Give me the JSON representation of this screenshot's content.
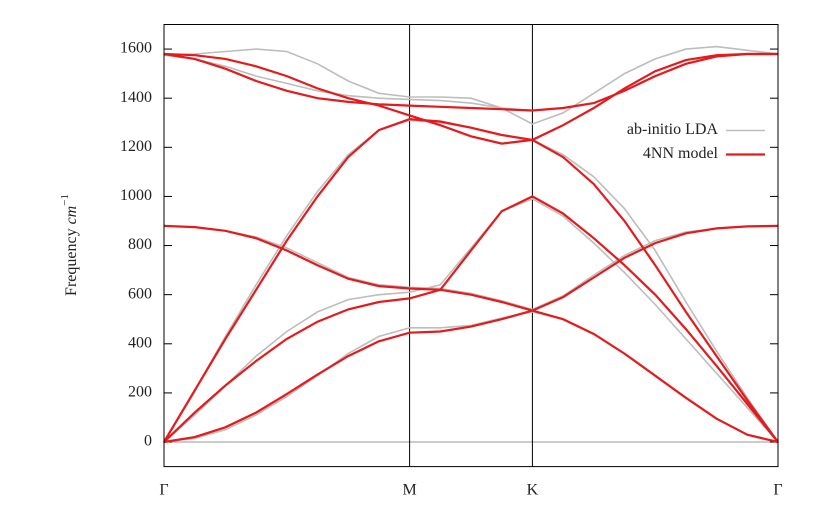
{
  "chart_data": {
    "type": "line",
    "ylabel": "Frequency",
    "ylabel_unit": "cm",
    "ylabel_exp": "−1",
    "x": [
      0,
      0.125,
      0.25,
      0.375,
      0.5,
      0.625,
      0.75,
      0.875,
      1,
      1.125,
      1.25,
      1.375,
      1.5,
      1.625,
      1.75,
      1.875,
      2,
      2.125,
      2.25,
      2.375,
      2.5
    ],
    "xlim": [
      0,
      2.5
    ],
    "xticks": [
      {
        "value": 0,
        "label": "Γ"
      },
      {
        "value": 1,
        "label": "M"
      },
      {
        "value": 1.5,
        "label": "K"
      },
      {
        "value": 2.5,
        "label": "Γ"
      }
    ],
    "ylim": [
      -100,
      1700
    ],
    "yticks": [
      0,
      200,
      400,
      600,
      800,
      1000,
      1200,
      1400,
      1600
    ],
    "legend": "top-right",
    "series": [
      {
        "name": "ab-initio LDA",
        "color": "#bdbdbd",
        "branches": [
          [
            0,
            15,
            50,
            110,
            185,
            270,
            360,
            430,
            465,
            465,
            475,
            505,
            530,
            500,
            440,
            360,
            270,
            180,
            95,
            30,
            0
          ],
          [
            880,
            875,
            860,
            835,
            790,
            730,
            670,
            640,
            630,
            625,
            605,
            575,
            540,
            595,
            680,
            760,
            820,
            855,
            870,
            878,
            880
          ],
          [
            0,
            110,
            230,
            350,
            450,
            530,
            580,
            600,
            610,
            640,
            790,
            940,
            990,
            920,
            810,
            690,
            560,
            420,
            280,
            140,
            0
          ],
          [
            0,
            210,
            430,
            640,
            840,
            1020,
            1170,
            1270,
            1310,
            1300,
            1280,
            1250,
            1230,
            1170,
            1080,
            950,
            780,
            570,
            370,
            180,
            0
          ],
          [
            1575,
            1580,
            1590,
            1600,
            1590,
            1540,
            1470,
            1420,
            1405,
            1405,
            1400,
            1360,
            1295,
            1340,
            1420,
            1500,
            1560,
            1600,
            1610,
            1595,
            1580
          ],
          [
            1575,
            1560,
            1530,
            1490,
            1460,
            1430,
            1410,
            1400,
            1395,
            1390,
            1380,
            1360,
            1350,
            1360,
            1380,
            1430,
            1490,
            1540,
            1570,
            1580,
            1580
          ]
        ]
      },
      {
        "name": "4NN model",
        "color": "#e41a1c",
        "branches": [
          [
            0,
            20,
            60,
            120,
            195,
            275,
            350,
            410,
            445,
            450,
            470,
            500,
            535,
            500,
            440,
            360,
            270,
            180,
            95,
            30,
            0
          ],
          [
            880,
            875,
            860,
            830,
            780,
            720,
            665,
            635,
            625,
            620,
            600,
            570,
            535,
            590,
            670,
            750,
            810,
            850,
            870,
            878,
            880
          ],
          [
            0,
            120,
            230,
            330,
            420,
            490,
            540,
            570,
            585,
            620,
            780,
            940,
            1000,
            930,
            830,
            720,
            600,
            460,
            310,
            155,
            0
          ],
          [
            0,
            210,
            420,
            620,
            820,
            1000,
            1160,
            1270,
            1315,
            1305,
            1280,
            1250,
            1230,
            1160,
            1050,
            900,
            720,
            530,
            350,
            170,
            0
          ],
          [
            1580,
            1575,
            1560,
            1530,
            1490,
            1440,
            1400,
            1370,
            1330,
            1290,
            1245,
            1215,
            1230,
            1290,
            1360,
            1440,
            1510,
            1555,
            1575,
            1580,
            1580
          ],
          [
            1580,
            1560,
            1520,
            1470,
            1430,
            1400,
            1385,
            1375,
            1370,
            1365,
            1360,
            1355,
            1350,
            1360,
            1380,
            1430,
            1490,
            1540,
            1570,
            1580,
            1580
          ]
        ]
      }
    ]
  }
}
